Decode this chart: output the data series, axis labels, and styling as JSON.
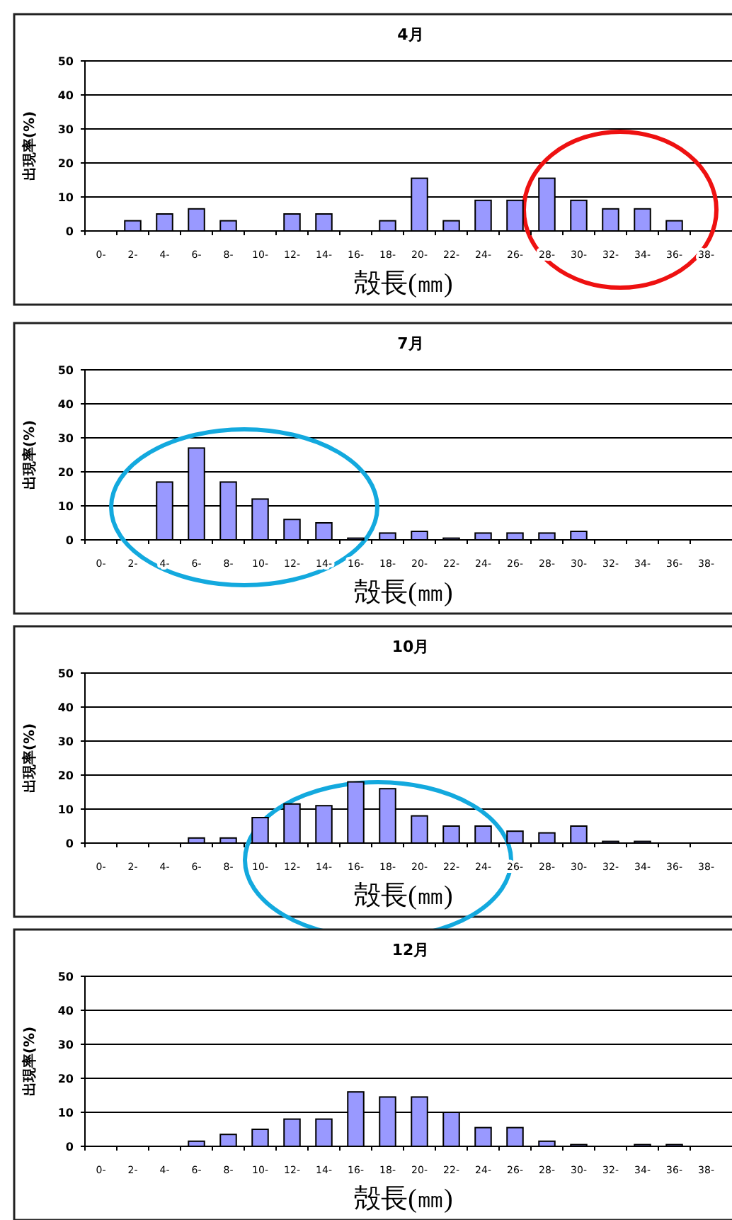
{
  "chart_data": [
    {
      "type": "bar",
      "title": "4月",
      "xlabel": "殻長(㎜)",
      "ylabel": "出現率(%)",
      "categories": [
        "0-",
        "2-",
        "4-",
        "6-",
        "8-",
        "10-",
        "12-",
        "14-",
        "16-",
        "18-",
        "20-",
        "22-",
        "24-",
        "26-",
        "28-",
        "30-",
        "32-",
        "34-",
        "36-",
        "38-"
      ],
      "values": [
        0,
        3,
        5,
        6.5,
        3,
        0,
        5,
        5,
        0,
        3,
        15.5,
        3,
        9,
        9,
        15.5,
        9,
        6.5,
        6.5,
        3,
        0
      ],
      "color": "#9999ff",
      "ylim": [
        0,
        50
      ],
      "yticks": [
        0,
        10,
        20,
        30,
        40,
        50
      ],
      "grid": "y"
    },
    {
      "type": "bar",
      "title": "7月",
      "xlabel": "殻長(㎜)",
      "ylabel": "出現率(%)",
      "categories": [
        "0-",
        "2-",
        "4-",
        "6-",
        "8-",
        "10-",
        "12-",
        "14-",
        "16-",
        "18-",
        "20-",
        "22-",
        "24-",
        "26-",
        "28-",
        "30-",
        "32-",
        "34-",
        "36-",
        "38-"
      ],
      "values": [
        0,
        0,
        17,
        27,
        17,
        12,
        6,
        5,
        0.5,
        2,
        2.5,
        0.5,
        2,
        2,
        2,
        2.5,
        0,
        0,
        0,
        0
      ],
      "color": "#9999ff",
      "ylim": [
        0,
        50
      ],
      "yticks": [
        0,
        10,
        20,
        30,
        40,
        50
      ],
      "grid": "y"
    },
    {
      "type": "bar",
      "title": "10月",
      "xlabel": "殻長(㎜)",
      "ylabel": "出現率(%)",
      "categories": [
        "0-",
        "2-",
        "4-",
        "6-",
        "8-",
        "10-",
        "12-",
        "14-",
        "16-",
        "18-",
        "20-",
        "22-",
        "24-",
        "26-",
        "28-",
        "30-",
        "32-",
        "34-",
        "36-",
        "38-"
      ],
      "values": [
        0,
        0,
        0,
        1.5,
        1.5,
        7.5,
        11.5,
        11,
        18,
        16,
        8,
        5,
        5,
        3.5,
        3,
        5,
        0.5,
        0.5,
        0,
        0
      ],
      "color": "#9999ff",
      "ylim": [
        0,
        50
      ],
      "yticks": [
        0,
        10,
        20,
        30,
        40,
        50
      ],
      "grid": "y"
    },
    {
      "type": "bar",
      "title": "12月",
      "xlabel": "殻長(㎜)",
      "ylabel": "出現率(%)",
      "categories": [
        "0-",
        "2-",
        "4-",
        "6-",
        "8-",
        "10-",
        "12-",
        "14-",
        "16-",
        "18-",
        "20-",
        "22-",
        "24-",
        "26-",
        "28-",
        "30-",
        "32-",
        "34-",
        "36-",
        "38-"
      ],
      "values": [
        0,
        0,
        0,
        1.5,
        3.5,
        5,
        8,
        8,
        16,
        14.5,
        14.5,
        10,
        5.5,
        5.5,
        1.5,
        0.5,
        0,
        0.5,
        0.5,
        0
      ],
      "color": "#9999ff",
      "ylim": [
        0,
        50
      ],
      "yticks": [
        0,
        10,
        20,
        30,
        40,
        50
      ],
      "grid": "y"
    }
  ]
}
